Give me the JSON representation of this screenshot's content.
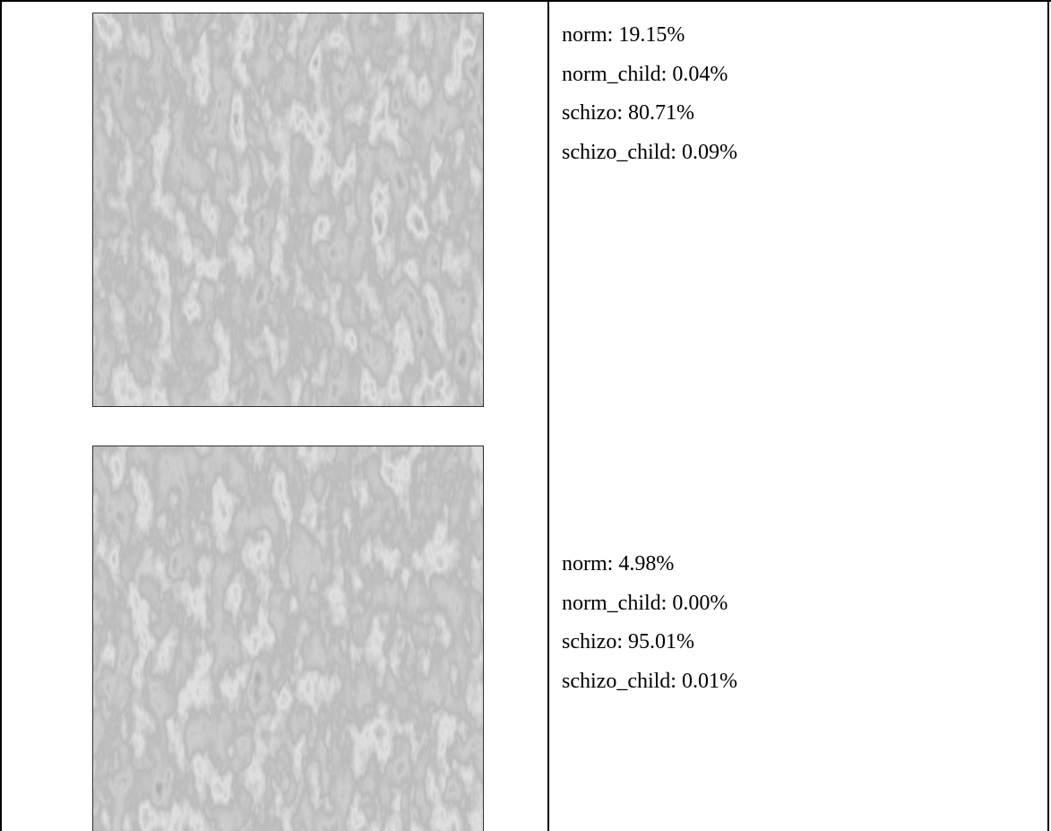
{
  "table": {
    "rows": [
      {
        "lines": [
          "norm: 19.15%",
          "norm_child: 0.04%",
          "schizo: 80.71%",
          "schizo_child: 0.09%"
        ]
      },
      {
        "lines": [
          "norm: 4.98%",
          "norm_child: 0.00%",
          "schizo: 95.01%",
          "schizo_child: 0.01%"
        ]
      }
    ]
  }
}
